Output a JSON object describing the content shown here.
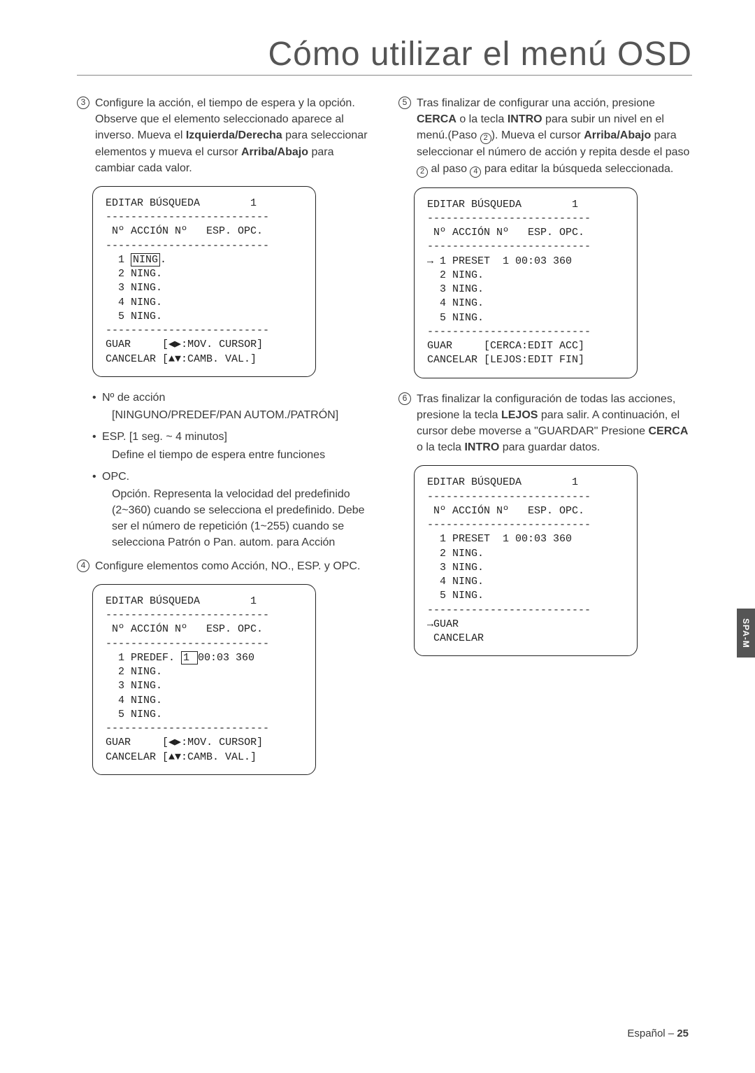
{
  "page_title": "Cómo utilizar el menú OSD",
  "side_tab": "SPA-M",
  "footer_lang": "Español – ",
  "footer_page": "25",
  "left": {
    "step3": {
      "num": "3",
      "p1a": "Configure la acción, el tiempo de espera y la opción. Observe que el elemento seleccionado aparece al inverso. Mueva el ",
      "b1": "Izquierda/Derecha",
      "p1b": " para seleccionar elementos y mueva el cursor ",
      "b2": "Arriba/Abajo",
      "p1c": " para cambiar cada valor."
    },
    "osd1": {
      "title": "EDITAR BÚSQUEDA        1",
      "dashes": "--------------------------",
      "head": " Nº ACCIÓN Nº   ESP. OPC.",
      "r1a": "  1 ",
      "r1b": "NING",
      "r1c": ".",
      "r2": "  2 NING.",
      "r3": "  3 NING.",
      "r4": "  4 NING.",
      "r5": "  5 NING.",
      "f1": "GUAR     [◀▶:MOV. CURSOR]",
      "f2": "CANCELAR [▲▼:CAMB. VAL.]"
    },
    "bullets": {
      "b1_t": "Nº de acción",
      "b1_sub": "[NINGUNO/PREDEF/PAN AUTOM./PATRÓN]",
      "b2_t": "ESP.        [1 seg. ~ 4 minutos]",
      "b2_sub": "Define el tiempo de espera entre funciones",
      "b3_t": "OPC.",
      "b3_sub": "Opción. Representa la velocidad del predefinido (2~360) cuando se selecciona el predefinido. Debe ser el número de repetición (1~255) cuando se selecciona Patrón o Pan. autom. para Acción"
    },
    "step4": {
      "num": "4",
      "text": "Configure elementos como Acción, NO., ESP. y OPC."
    },
    "osd2": {
      "title": "EDITAR BÚSQUEDA        1",
      "dashes": "--------------------------",
      "head": " Nº ACCIÓN Nº   ESP. OPC.",
      "r1a": "  1 PREDEF. ",
      "r1b": "1 ",
      "r1c": "00:03 360",
      "r2": "  2 NING.",
      "r3": "  3 NING.",
      "r4": "  4 NING.",
      "r5": "  5 NING.",
      "f1": "GUAR     [◀▶:MOV. CURSOR]",
      "f2": "CANCELAR [▲▼:CAMB. VAL.]"
    }
  },
  "right": {
    "step5": {
      "num": "5",
      "p1a": "Tras finalizar de configurar una acción, presione ",
      "b1": "CERCA",
      "p1b": " o la tecla ",
      "b2": "INTRO",
      "p1c": " para subir un nivel en el menú.(Paso ",
      "c1": "2",
      "p1d": "). Mueva el cursor ",
      "b3": "Arriba/Abajo",
      "p1e": " para seleccionar el número de acción y repita desde el paso ",
      "c2": "2",
      "p1f": " al paso ",
      "c3": "4",
      "p1g": " para editar la búsqueda seleccionada."
    },
    "osd3": {
      "title": "EDITAR BÚSQUEDA        1",
      "dashes": "--------------------------",
      "head": " Nº ACCIÓN Nº   ESP. OPC.",
      "r1": "→ 1 PRESET  1 00:03 360",
      "r2": "  2 NING.",
      "r3": "  3 NING.",
      "r4": "  4 NING.",
      "r5": "  5 NING.",
      "f1": "GUAR     [CERCA:EDIT ACC]",
      "f2": "CANCELAR [LEJOS:EDIT FIN]"
    },
    "step6": {
      "num": "6",
      "p1a": "Tras finalizar la configuración de todas las acciones, presione la tecla ",
      "b1": "LEJOS",
      "p1b": " para salir. A continuación, el cursor debe moverse a \"GUARDAR\" Presione ",
      "b2": "CERCA",
      "p1c": " o la tecla ",
      "b3": "INTRO",
      "p1d": " para guardar datos."
    },
    "osd4": {
      "title": "EDITAR BÚSQUEDA        1",
      "dashes": "--------------------------",
      "head": " Nº ACCIÓN Nº   ESP. OPC.",
      "r1": "  1 PRESET  1 00:03 360",
      "r2": "  2 NING.",
      "r3": "  3 NING.",
      "r4": "  4 NING.",
      "r5": "  5 NING.",
      "f1": "→GUAR",
      "f2": " CANCELAR"
    }
  }
}
